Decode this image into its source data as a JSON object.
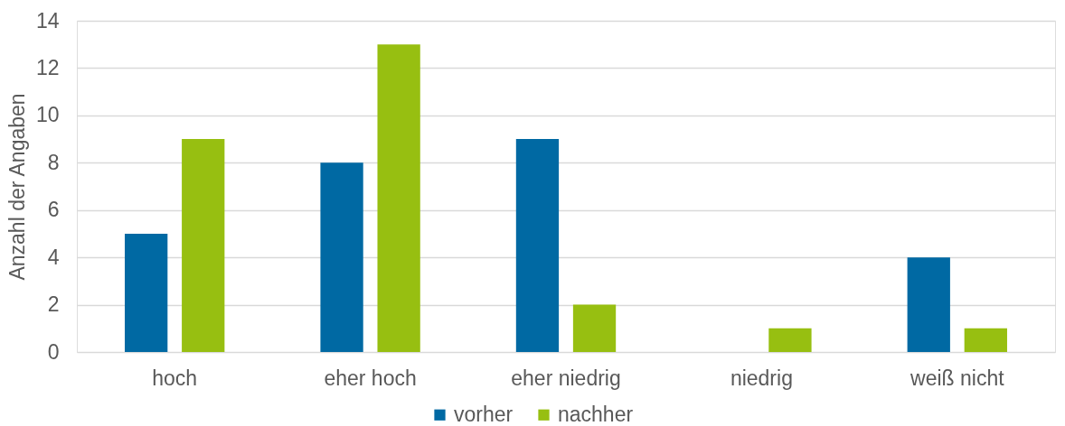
{
  "chart_data": {
    "type": "bar",
    "ylabel": "Anzahl der Angaben",
    "categories": [
      "hoch",
      "eher hoch",
      "eher niedrig",
      "niedrig",
      "weiß nicht"
    ],
    "series": [
      {
        "name": "vorher",
        "color": "#0069a3",
        "values": [
          5,
          8,
          9,
          0,
          4
        ]
      },
      {
        "name": "nachher",
        "color": "#97bf11",
        "values": [
          9,
          13,
          2,
          1,
          1
        ]
      }
    ],
    "ylim": [
      0,
      14
    ],
    "yticks": [
      0,
      2,
      4,
      6,
      8,
      10,
      12,
      14
    ],
    "grid": "y",
    "legend": "bottom"
  }
}
